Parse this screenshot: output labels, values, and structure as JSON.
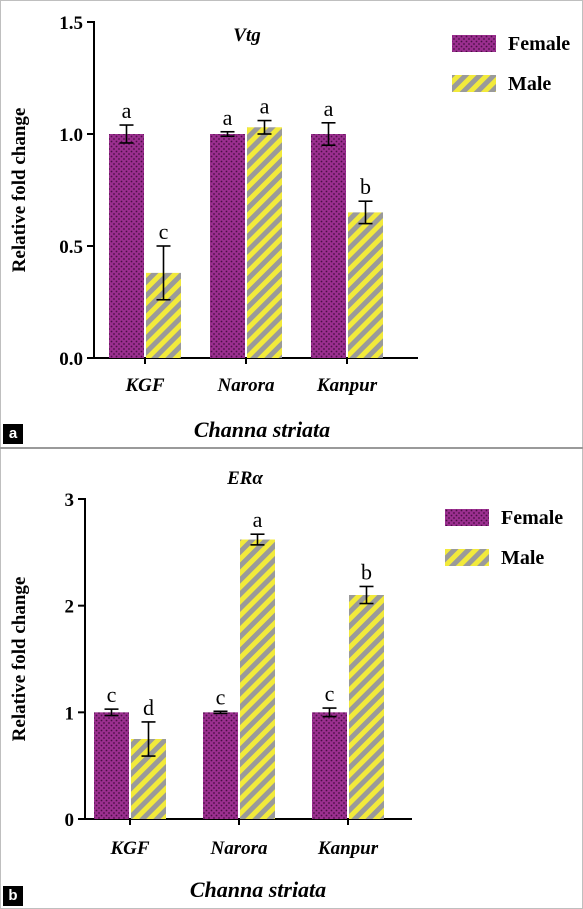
{
  "panels": [
    {
      "tag": "a",
      "chart_data": {
        "type": "bar",
        "title": "Vtg",
        "xlabel": "Channa striata",
        "ylabel": "Relative fold change",
        "categories": [
          "KGF",
          "Narora",
          "Kanpur"
        ],
        "ylim": [
          0,
          1.5
        ],
        "yticks": [
          "0.0",
          "0.5",
          "1.0",
          "1.5"
        ],
        "series": [
          {
            "name": "Female",
            "values": [
              1.0,
              1.0,
              1.0
            ],
            "errors": [
              0.04,
              0.01,
              0.05
            ],
            "letters": [
              "a",
              "a",
              "a"
            ]
          },
          {
            "name": "Male",
            "values": [
              0.38,
              1.03,
              0.65
            ],
            "errors": [
              0.12,
              0.03,
              0.05
            ],
            "letters": [
              "c",
              "a",
              "b"
            ]
          }
        ],
        "legend_position": "top-right"
      }
    },
    {
      "tag": "b",
      "chart_data": {
        "type": "bar",
        "title": "ERα",
        "xlabel": "Channa striata",
        "ylabel": "Relative fold change",
        "categories": [
          "KGF",
          "Narora",
          "Kanpur"
        ],
        "ylim": [
          0,
          3
        ],
        "yticks": [
          "0",
          "1",
          "2",
          "3"
        ],
        "series": [
          {
            "name": "Female",
            "values": [
              1.0,
              1.0,
              1.0
            ],
            "errors": [
              0.03,
              0.01,
              0.04
            ],
            "letters": [
              "c",
              "c",
              "c"
            ]
          },
          {
            "name": "Male",
            "values": [
              0.75,
              2.62,
              2.1
            ],
            "errors": [
              0.16,
              0.05,
              0.08
            ],
            "letters": [
              "d",
              "a",
              "b"
            ]
          }
        ],
        "legend_position": "top-right"
      }
    }
  ],
  "colors": {
    "female_base": "#9b2f8f",
    "female_dot": "#4a0f44",
    "male_base": "#f2ea3b",
    "male_stripe": "#9a9a9a",
    "axis": "#000000"
  }
}
